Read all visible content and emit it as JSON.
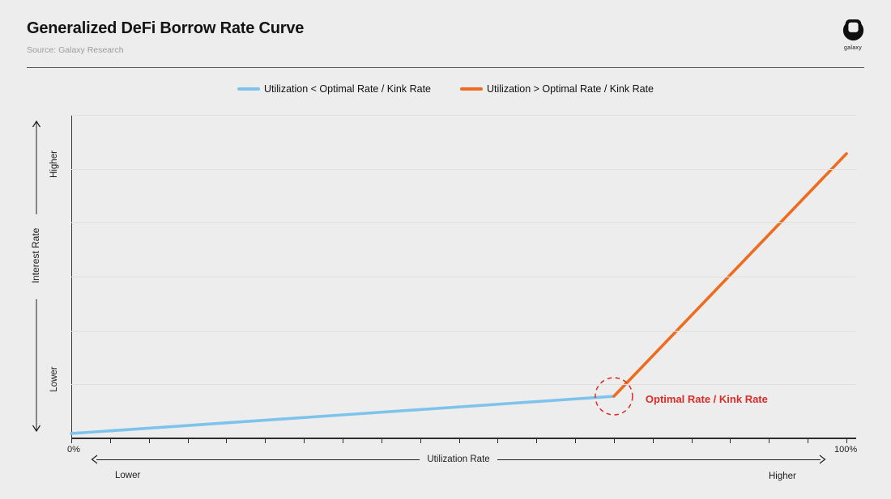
{
  "header": {
    "title": "Generalized DeFi Borrow Rate Curve",
    "source": "Source: Galaxy Research",
    "logo_label": "galaxy"
  },
  "legend": {
    "items": [
      {
        "label": "Utilization < Optimal Rate / Kink Rate",
        "color": "#7EC3EB"
      },
      {
        "label": "Utilization > Optimal Rate / Kink Rate",
        "color": "#ED6C1F"
      }
    ]
  },
  "axes": {
    "x": {
      "title": "Utilization Rate",
      "min_label": "0%",
      "max_label": "100%",
      "lower_label": "Lower",
      "higher_label": "Higher",
      "tick_count": 21
    },
    "y": {
      "title": "Interest Rate",
      "higher_label": "Higher",
      "lower_label": "Lower",
      "gridline_count": 6
    }
  },
  "annotation": {
    "label": "Optimal Rate / Kink Rate",
    "color": "#DB2B27"
  },
  "chart_data": {
    "type": "line",
    "title": "Generalized DeFi Borrow Rate Curve",
    "xlabel": "Utilization Rate",
    "ylabel": "Interest Rate",
    "xlim": [
      0,
      100
    ],
    "ylim": [
      0,
      1
    ],
    "x_unit": "utilization_percent",
    "y_unit": "relative_interest_rate",
    "grid": "horizontal",
    "legend_position": "top-center",
    "series": [
      {
        "name": "Utilization < Optimal Rate / Kink Rate",
        "color": "#7EC3EB",
        "points": [
          [
            0,
            0.015
          ],
          [
            70,
            0.13
          ]
        ]
      },
      {
        "name": "Utilization > Optimal Rate / Kink Rate",
        "color": "#ED6C1F",
        "points": [
          [
            70,
            0.13
          ],
          [
            100,
            0.88
          ]
        ]
      }
    ],
    "annotation_point": {
      "x": 70,
      "y": 0.13,
      "label": "Optimal Rate / Kink Rate"
    }
  }
}
